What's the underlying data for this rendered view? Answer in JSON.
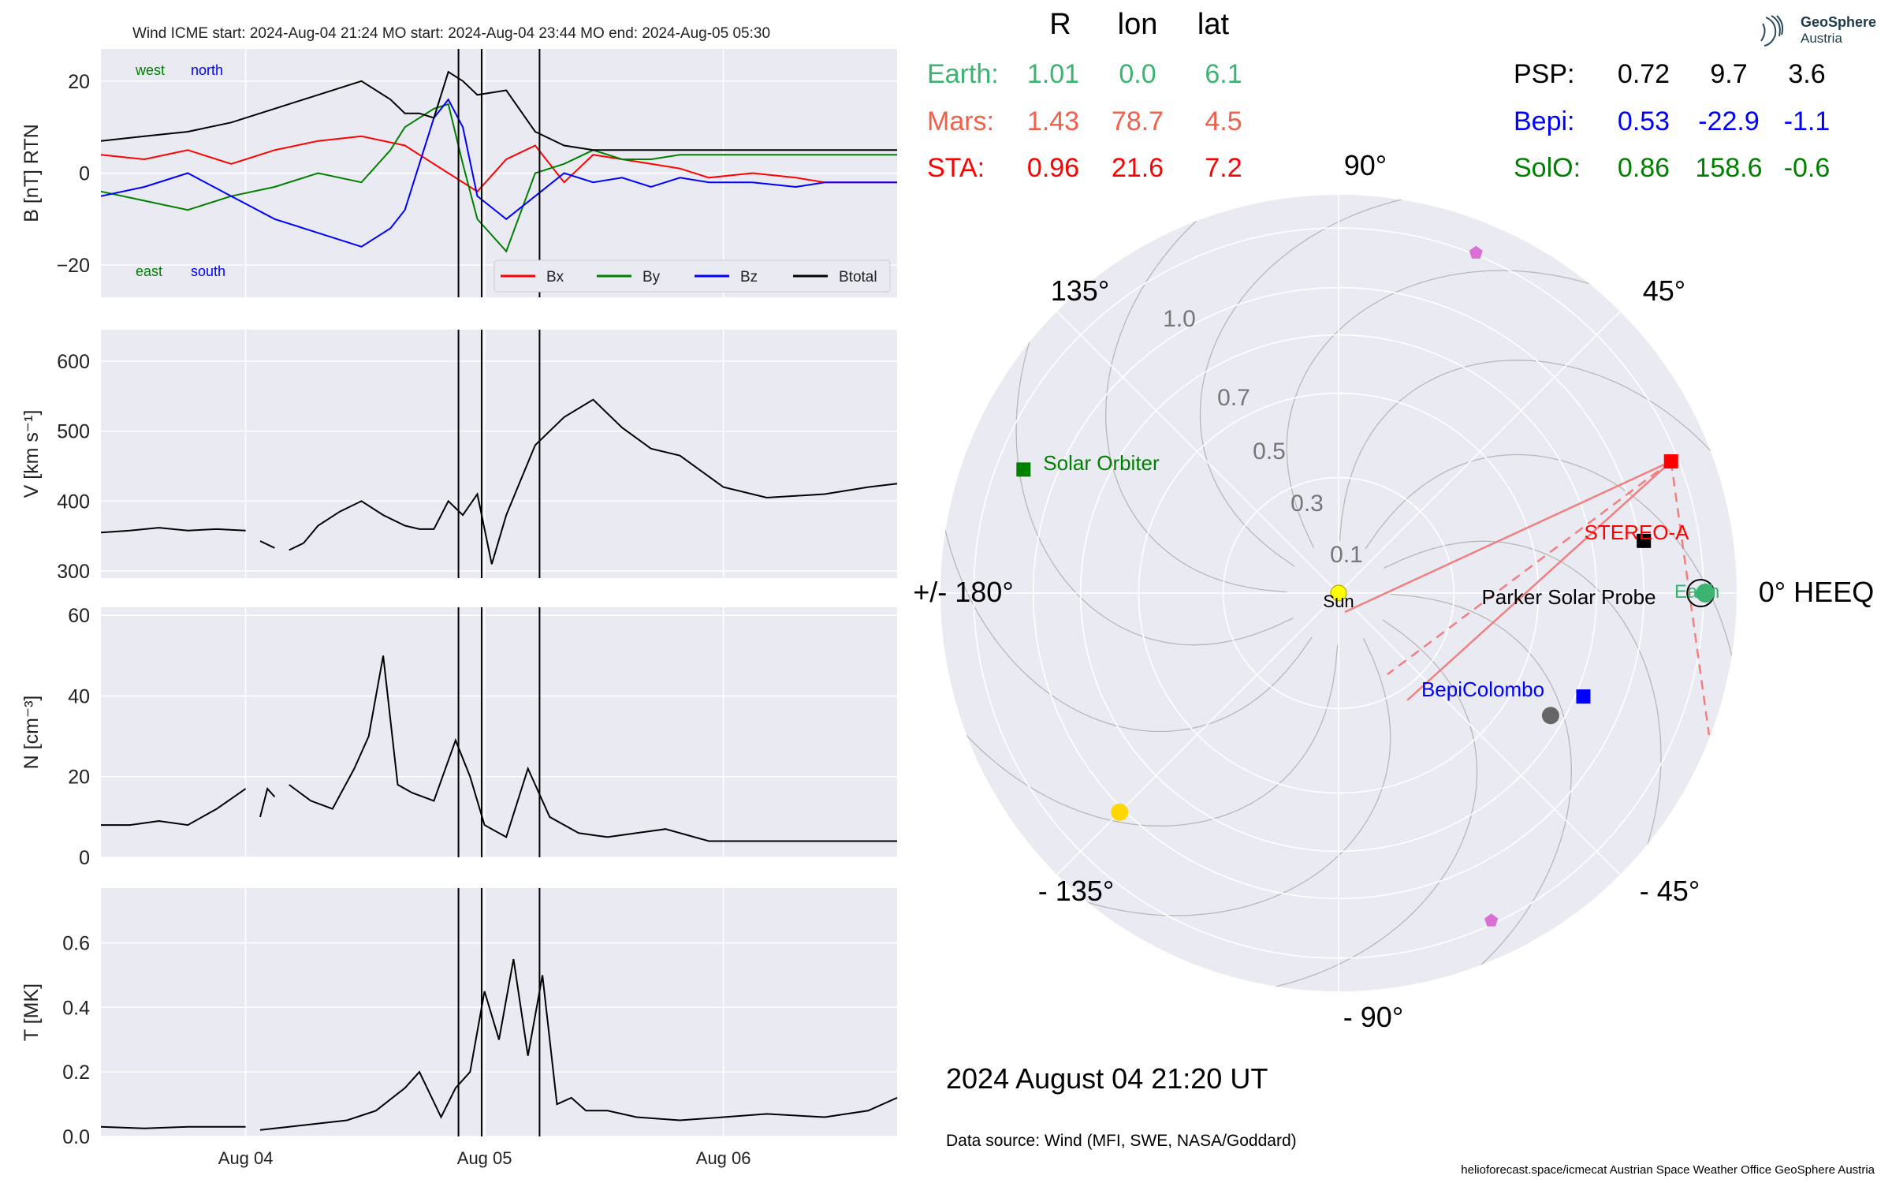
{
  "header": {
    "title": "Wind    ICME start: 2024-Aug-04 21:24   MO start: 2024-Aug-04 23:44   MO end: 2024-Aug-05 05:30"
  },
  "colors": {
    "panel_bg": "#eaeaf2",
    "grid": "#ffffff",
    "bx": "#ff0000",
    "by": "#008000",
    "bz": "#0000ff",
    "btotal": "#000000",
    "earth": "#3cb371",
    "mars": "#f0604a",
    "sta": "#ff0000",
    "psp": "#000000",
    "bepi": "#0000ff",
    "solo": "#008000"
  },
  "chart_data": [
    {
      "type": "line",
      "name": "magnetic-field",
      "ylabel": "B [nT] RTN",
      "ylim": [
        -27,
        27
      ],
      "yticks": [
        20,
        0,
        -20
      ],
      "ytick_labels": [
        "20",
        "0",
        "−20"
      ],
      "grid": true,
      "direction_labels": {
        "west": "west",
        "north": "north",
        "east": "east",
        "south": "south"
      },
      "legend": {
        "placement": "lower-right",
        "entries": [
          "Bx",
          "By",
          "Bz",
          "Btotal"
        ]
      },
      "series": [
        {
          "name": "Bx",
          "color": "#ff0000",
          "x": [
            0,
            0.3,
            0.6,
            0.9,
            1.2,
            1.5,
            1.8,
            2.1,
            2.2,
            2.4,
            2.6,
            2.8,
            3.0,
            3.2,
            3.4,
            3.6,
            3.8,
            4.0,
            4.2,
            4.5,
            4.8,
            5.0,
            5.5
          ],
          "y": [
            4,
            3,
            5,
            2,
            5,
            7,
            8,
            6,
            4,
            0,
            -4,
            3,
            6,
            -2,
            4,
            3,
            2,
            1,
            -1,
            0,
            -1,
            -2,
            -2
          ]
        },
        {
          "name": "By",
          "color": "#008000",
          "x": [
            0,
            0.3,
            0.6,
            0.9,
            1.2,
            1.5,
            1.8,
            2.0,
            2.1,
            2.3,
            2.4,
            2.5,
            2.6,
            2.8,
            3.0,
            3.2,
            3.4,
            3.6,
            3.8,
            4.0,
            4.2,
            4.5,
            4.8,
            5.0,
            5.5
          ],
          "y": [
            -4,
            -6,
            -8,
            -5,
            -3,
            0,
            -2,
            5,
            10,
            14,
            15,
            2,
            -10,
            -17,
            0,
            2,
            5,
            3,
            3,
            4,
            4,
            4,
            4,
            4,
            4
          ]
        },
        {
          "name": "Bz",
          "color": "#0000ff",
          "x": [
            0,
            0.3,
            0.6,
            0.9,
            1.2,
            1.5,
            1.8,
            2.0,
            2.1,
            2.3,
            2.4,
            2.5,
            2.6,
            2.8,
            3.0,
            3.2,
            3.4,
            3.6,
            3.8,
            4.0,
            4.2,
            4.5,
            4.8,
            5.0,
            5.5
          ],
          "y": [
            -5,
            -3,
            0,
            -5,
            -10,
            -13,
            -16,
            -12,
            -8,
            12,
            16,
            10,
            -5,
            -10,
            -5,
            0,
            -2,
            -1,
            -3,
            -1,
            -2,
            -2,
            -3,
            -2,
            -2
          ]
        },
        {
          "name": "Btotal",
          "color": "#000000",
          "x": [
            0,
            0.3,
            0.6,
            0.9,
            1.2,
            1.5,
            1.8,
            2.0,
            2.1,
            2.2,
            2.3,
            2.4,
            2.5,
            2.6,
            2.8,
            3.0,
            3.2,
            3.4,
            3.6,
            3.8,
            4.0,
            4.2,
            4.5,
            4.8,
            5.0,
            5.5
          ],
          "y": [
            7,
            8,
            9,
            11,
            14,
            17,
            20,
            16,
            13,
            13,
            12,
            22,
            20,
            17,
            18,
            9,
            6,
            5,
            5,
            5,
            5,
            5,
            5,
            5,
            5,
            5
          ]
        }
      ]
    },
    {
      "type": "line",
      "name": "speed",
      "ylabel": "V [km s⁻¹]",
      "ylim": [
        290,
        645
      ],
      "yticks": [
        600,
        500,
        400,
        300
      ],
      "ytick_labels": [
        "600",
        "500",
        "400",
        "300"
      ],
      "grid": true,
      "series": [
        {
          "color": "#000000",
          "segments": [
            {
              "x": [
                0,
                0.2,
                0.4,
                0.6,
                0.8,
                1.0
              ],
              "y": [
                355,
                358,
                362,
                358,
                360,
                358
              ]
            },
            {
              "x": [
                1.1,
                1.2
              ],
              "y": [
                343,
                333
              ]
            },
            {
              "x": [
                1.3,
                1.4,
                1.5,
                1.65,
                1.8,
                1.95,
                2.1,
                2.2,
                2.3,
                2.4,
                2.5,
                2.6,
                2.7,
                2.8,
                2.9,
                3.0,
                3.2,
                3.4,
                3.6,
                3.8,
                4.0,
                4.3,
                4.6,
                5.0,
                5.3,
                5.5
              ],
              "y": [
                330,
                340,
                365,
                385,
                400,
                380,
                365,
                360,
                360,
                400,
                380,
                410,
                310,
                380,
                430,
                480,
                520,
                545,
                505,
                475,
                465,
                420,
                405,
                410,
                420,
                425
              ]
            }
          ]
        }
      ]
    },
    {
      "type": "line",
      "name": "density",
      "ylabel": "N [cm⁻³]",
      "ylim": [
        0,
        62
      ],
      "yticks": [
        60,
        40,
        20,
        0
      ],
      "ytick_labels": [
        "60",
        "40",
        "20",
        "0"
      ],
      "grid": true,
      "series": [
        {
          "color": "#000000",
          "segments": [
            {
              "x": [
                0,
                0.2,
                0.4,
                0.6,
                0.8,
                1.0
              ],
              "y": [
                8,
                8,
                9,
                8,
                12,
                17
              ]
            },
            {
              "x": [
                1.1,
                1.15,
                1.2
              ],
              "y": [
                10,
                17,
                15
              ]
            },
            {
              "x": [
                1.3,
                1.45,
                1.6,
                1.75,
                1.85,
                1.95,
                2.05,
                2.15,
                2.3,
                2.45,
                2.55,
                2.65,
                2.8,
                2.95,
                3.1,
                3.3,
                3.5,
                3.7,
                3.9,
                4.2,
                4.6,
                5.0,
                5.5
              ],
              "y": [
                18,
                14,
                12,
                22,
                30,
                50,
                18,
                16,
                14,
                29,
                20,
                8,
                5,
                22,
                10,
                6,
                5,
                6,
                7,
                4,
                4,
                4,
                4
              ]
            }
          ]
        }
      ]
    },
    {
      "type": "line",
      "name": "temperature",
      "ylabel": "T [MK]",
      "ylim": [
        0,
        0.77
      ],
      "yticks": [
        0.6,
        0.4,
        0.2,
        0.0
      ],
      "ytick_labels": [
        "0.6",
        "0.4",
        "0.2",
        "0.0"
      ],
      "grid": true,
      "xtick_labels": [
        "Aug 04",
        "Aug 05",
        "Aug 06"
      ],
      "xtick_values": [
        1.0,
        2.65,
        4.3
      ],
      "series": [
        {
          "color": "#000000",
          "segments": [
            {
              "x": [
                0,
                0.3,
                0.6,
                1.0
              ],
              "y": [
                0.03,
                0.025,
                0.03,
                0.03
              ]
            },
            {
              "x": [
                1.1,
                1.3,
                1.5,
                1.7,
                1.9,
                2.1,
                2.2,
                2.35,
                2.45,
                2.55,
                2.65,
                2.75,
                2.85,
                2.95,
                3.05,
                3.15,
                3.25,
                3.35,
                3.5,
                3.7,
                4.0,
                4.3,
                4.6,
                5.0,
                5.3,
                5.5
              ],
              "y": [
                0.02,
                0.03,
                0.04,
                0.05,
                0.08,
                0.15,
                0.2,
                0.06,
                0.15,
                0.2,
                0.45,
                0.3,
                0.55,
                0.25,
                0.5,
                0.1,
                0.12,
                0.08,
                0.08,
                0.06,
                0.05,
                0.06,
                0.07,
                0.06,
                0.08,
                0.12
              ]
            }
          ]
        }
      ]
    },
    {
      "type": "scatter",
      "name": "positions-polar",
      "projection": "polar",
      "radial_ticks": [
        "0.1",
        "0.3",
        "0.5",
        "0.7",
        "1.0"
      ],
      "angle_labels": [
        "0° HEEQ",
        "45°",
        "90°",
        "135°",
        "+/- 180°",
        "- 135°",
        "- 90°",
        "- 45°"
      ],
      "points": [
        {
          "name": "Sun",
          "label": "Sun",
          "r": 0.0,
          "lon": 0.0,
          "color": "#ffff00",
          "marker": "circle"
        },
        {
          "name": "Earth",
          "label": "Earth",
          "r": 1.01,
          "lon": 0.0,
          "color": "#3cb371",
          "marker": "circle"
        },
        {
          "name": "STEREO-A",
          "label": "STEREO-A",
          "r": 0.96,
          "lon": 21.6,
          "color": "#ff0000",
          "marker": "square"
        },
        {
          "name": "Parker Solar Probe",
          "label": "Parker Solar Probe",
          "r": 0.72,
          "lon": 9.7,
          "color": "#000000",
          "marker": "square"
        },
        {
          "name": "BepiColombo",
          "label": "BepiColombo",
          "r": 0.53,
          "lon": -22.9,
          "color": "#0000ff",
          "marker": "square"
        },
        {
          "name": "Solar Orbiter",
          "label": "Solar Orbiter",
          "r": 0.86,
          "lon": 158.6,
          "color": "#008000",
          "marker": "square"
        },
        {
          "name": "Mercury",
          "label": "",
          "r": 0.45,
          "lon": -30.0,
          "color": "#666666",
          "marker": "circle"
        },
        {
          "name": "Venus",
          "label": "",
          "r": 0.72,
          "lon": -135.0,
          "color": "#ffd700",
          "marker": "circle"
        },
        {
          "name": "Body-1",
          "label": "",
          "r": 1.01,
          "lon": 68.0,
          "color": "#da70d6",
          "marker": "pentagon"
        },
        {
          "name": "Body-2",
          "label": "",
          "r": 0.98,
          "lon": -65.0,
          "color": "#da70d6",
          "marker": "pentagon"
        }
      ]
    }
  ],
  "positions_table": {
    "headers": [
      "R",
      "lon",
      "lat"
    ],
    "left": [
      {
        "label": "Earth:",
        "R": "1.01",
        "lon": "0.0",
        "lat": "6.1",
        "color": "#3cb371"
      },
      {
        "label": "Mars:",
        "R": "1.43",
        "lon": "78.7",
        "lat": "4.5",
        "color": "#f0604a"
      },
      {
        "label": "STA:",
        "R": "0.96",
        "lon": "21.6",
        "lat": "7.2",
        "color": "#ff0000"
      }
    ],
    "right": [
      {
        "label": "PSP:",
        "R": "0.72",
        "lon": "9.7",
        "lat": "3.6",
        "color": "#000000"
      },
      {
        "label": "Bepi:",
        "R": "0.53",
        "lon": "-22.9",
        "lat": "-1.1",
        "color": "#0000ff"
      },
      {
        "label": "SolO:",
        "R": "0.86",
        "lon": "158.6",
        "lat": "-0.6",
        "color": "#008000"
      }
    ]
  },
  "logo": {
    "line1": "GeoSphere",
    "line2": "Austria"
  },
  "timestamp": "2024 August 04  21:20 UT",
  "data_source": "Data source: Wind (MFI, SWE, NASA/Goddard)",
  "footer": "helioforecast.space/icmecat   Austrian Space Weather Office   GeoSphere Austria"
}
